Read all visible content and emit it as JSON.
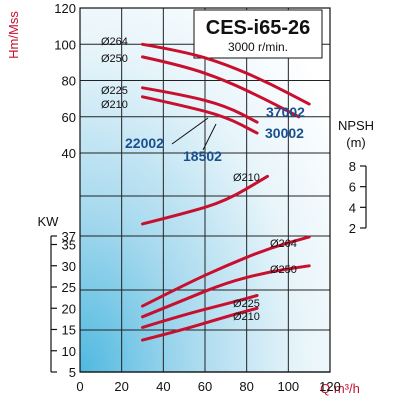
{
  "chart_data": {
    "type": "line",
    "title": "CES-i65-26",
    "subtitle": "3000 r/min.",
    "xlabel": "Q m³/h",
    "x_ticks": [
      0,
      20,
      40,
      60,
      80,
      100,
      120
    ],
    "xlim": [
      0,
      120
    ],
    "head_panel": {
      "ylabel": "Hm/Mss",
      "y_ticks": [
        40,
        60,
        80,
        100,
        120
      ],
      "ylim": [
        40,
        120
      ],
      "series": [
        {
          "name": "Ø264",
          "model": "37002",
          "x": [
            30,
            50,
            70,
            90,
            110
          ],
          "y": [
            100,
            96,
            89,
            79,
            67
          ]
        },
        {
          "name": "Ø250",
          "model": "30002",
          "x": [
            30,
            50,
            70,
            90,
            105
          ],
          "y": [
            93,
            88,
            80,
            69,
            60
          ]
        },
        {
          "name": "Ø225",
          "model": "22002",
          "x": [
            30,
            50,
            70,
            85
          ],
          "y": [
            76,
            72,
            66,
            57
          ]
        },
        {
          "name": "Ø210",
          "model": "18502",
          "x": [
            30,
            50,
            70,
            85
          ],
          "y": [
            71,
            66,
            60,
            51
          ]
        }
      ]
    },
    "npsh_panel": {
      "ylabel": "NPSH (m)",
      "y_ticks": [
        2,
        4,
        6,
        8
      ],
      "ylim": [
        2,
        8
      ],
      "series": [
        {
          "name": "Ø210",
          "x": [
            30,
            50,
            70,
            90
          ],
          "y": [
            2.4,
            3.4,
            4.6,
            7.0
          ]
        }
      ]
    },
    "power_panel": {
      "ylabel": "KW",
      "y_ticks": [
        5,
        10,
        15,
        20,
        25,
        30,
        35,
        37
      ],
      "ylim": [
        5,
        37
      ],
      "series": [
        {
          "name": "Ø264",
          "x": [
            30,
            50,
            70,
            90,
            110
          ],
          "y": [
            20.5,
            25.5,
            30,
            34,
            36.8
          ]
        },
        {
          "name": "Ø250",
          "x": [
            30,
            50,
            70,
            90,
            110
          ],
          "y": [
            18,
            22,
            26,
            28.5,
            30
          ]
        },
        {
          "name": "Ø225",
          "x": [
            30,
            50,
            70,
            85
          ],
          "y": [
            15.5,
            18.5,
            21,
            23
          ]
        },
        {
          "name": "Ø210",
          "x": [
            30,
            50,
            70,
            85
          ],
          "y": [
            12.5,
            15,
            18,
            20
          ]
        }
      ]
    },
    "colors": {
      "curve": "#c8102e",
      "model_label": "#1a4f8f",
      "grid": "#222222"
    }
  }
}
